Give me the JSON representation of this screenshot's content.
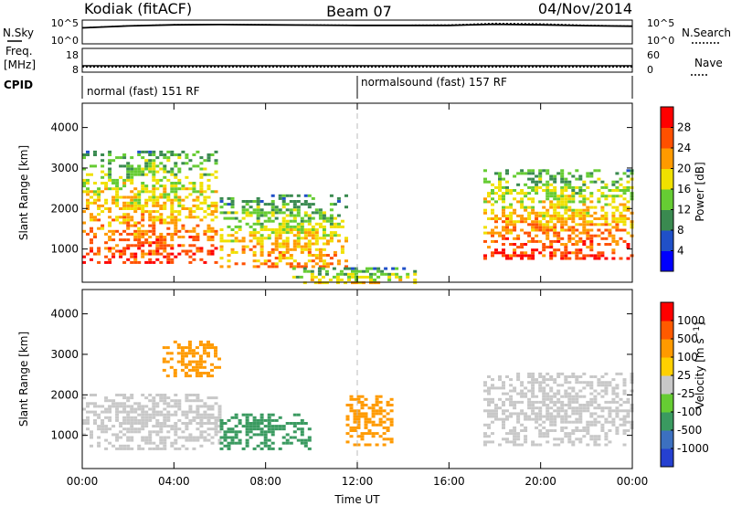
{
  "header": {
    "station": "Kodiak (fitACF)",
    "beam": "Beam 07",
    "date": "04/Nov/2014"
  },
  "panel_labels": {
    "nsky": "N.Sky",
    "nsearch": "N.Search",
    "freq_line1": "Freq.",
    "freq_line2": "[MHz]",
    "nave": "Nave",
    "cpid": "CPID"
  },
  "cpid_segments": [
    {
      "label": "normal (fast) 151 RF",
      "start_hour": 0
    },
    {
      "label": "normalsound (fast) 157 RF",
      "start_hour": 12
    }
  ],
  "colors": {
    "power_scale": [
      "#0000ff",
      "#2050c8",
      "#3a8a50",
      "#66cc33",
      "#f0e000",
      "#ff9a00",
      "#ff5000",
      "#ff0000"
    ],
    "velocity_scale": [
      "#2540d0",
      "#3c70c0",
      "#3a9a60",
      "#66cc33",
      "#c8c8c8",
      "#ffd000",
      "#ff9a00",
      "#ff5a00",
      "#ff0000"
    ]
  },
  "chart_data": [
    {
      "type": "line",
      "name": "noise-panel",
      "x": [
        0,
        2,
        4,
        6,
        8,
        10,
        12,
        14,
        16,
        18,
        20,
        22,
        24
      ],
      "series": [
        {
          "name": "N.Sky",
          "values": [
            5.5,
            6.2,
            6.6,
            6.7,
            6.6,
            6.5,
            6.4,
            6.4,
            6.4,
            6.8,
            6.6,
            6.3,
            6.1
          ]
        },
        {
          "name": "N.Search",
          "values": [
            5.6,
            6.3,
            6.7,
            6.8,
            6.7,
            6.6,
            6.5,
            6.5,
            6.6,
            7.2,
            7.0,
            6.5,
            6.2
          ]
        }
      ],
      "left_ticks": [
        "10^5",
        "10^0"
      ],
      "right_ticks": [
        "10^5",
        "10^0"
      ]
    },
    {
      "type": "line",
      "name": "freq-nave-panel",
      "x": [
        0,
        6,
        12,
        18,
        24
      ],
      "series": [
        {
          "name": "Freq.",
          "values": [
            10.5,
            10.5,
            10.5,
            10.5,
            10.5
          ]
        },
        {
          "name": "Nave",
          "values": [
            12,
            12,
            12,
            12,
            12
          ]
        }
      ],
      "left_ticks": [
        "18",
        "8"
      ],
      "right_ticks": [
        "60",
        "0"
      ]
    },
    {
      "type": "heatmap",
      "name": "power",
      "xlabel": "",
      "ylabel": "Slant Range [km]",
      "xlim": [
        0,
        24
      ],
      "ylim": [
        180,
        4600
      ],
      "yticks": [
        1000,
        2000,
        3000,
        4000
      ],
      "colorbar_label": "Power [dB]",
      "colorbar_ticks": [
        "4",
        "8",
        "12",
        "16",
        "20",
        "24",
        "28"
      ],
      "features": [
        {
          "region": "evening/night echo band",
          "hours": [
            0,
            5.8
          ],
          "range_km": [
            700,
            3500
          ],
          "peak_power_db": 28
        },
        {
          "region": "post-midnight patches",
          "hours": [
            6,
            11.5
          ],
          "range_km": [
            600,
            2400
          ],
          "peak_power_db": 24
        },
        {
          "region": "near-range ground scatter",
          "hours": [
            9,
            14.5
          ],
          "range_km": [
            200,
            600
          ],
          "peak_power_db": 20
        },
        {
          "region": "dawn echo band",
          "hours": [
            17.5,
            24
          ],
          "range_km": [
            800,
            3000
          ],
          "peak_power_db": 28
        }
      ]
    },
    {
      "type": "heatmap",
      "name": "velocity",
      "xlabel": "Time UT",
      "ylabel": "Slant Range [km]",
      "xlim": [
        0,
        24
      ],
      "ylim": [
        180,
        4600
      ],
      "xticks": [
        "00:00",
        "04:00",
        "08:00",
        "12:00",
        "16:00",
        "20:00",
        "00:00"
      ],
      "yticks": [
        1000,
        2000,
        3000,
        4000
      ],
      "colorbar_label": "Velocity [m s^-1]",
      "colorbar_ticks": [
        "1000",
        "500",
        "100",
        "25",
        "-25",
        "-100",
        "-500",
        "-1000"
      ],
      "features": [
        {
          "region": "ground scatter band (gray)",
          "hours": [
            0,
            6
          ],
          "range_km": [
            700,
            2100
          ],
          "velocity_ms": 0
        },
        {
          "region": "receding flows (orange)",
          "hours": [
            3.5,
            6
          ],
          "range_km": [
            2500,
            3400
          ],
          "velocity_ms": -300
        },
        {
          "region": "approaching flows (green)",
          "hours": [
            6,
            10
          ],
          "range_km": [
            700,
            1600
          ],
          "velocity_ms": 200
        },
        {
          "region": "receding flows (orange)",
          "hours": [
            11.5,
            13.5
          ],
          "range_km": [
            800,
            2000
          ],
          "velocity_ms": -400
        },
        {
          "region": "dawn ground scatter (gray)",
          "hours": [
            17.5,
            24
          ],
          "range_km": [
            800,
            2600
          ],
          "velocity_ms": 0
        }
      ]
    }
  ]
}
